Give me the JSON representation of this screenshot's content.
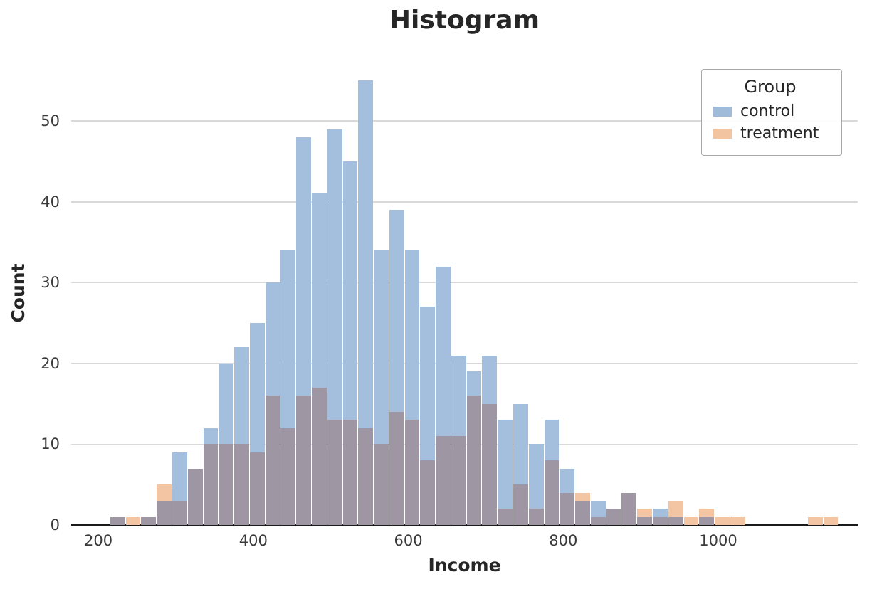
{
  "chart_data": {
    "type": "bar",
    "subtype": "overlaid-histogram",
    "title": "Histogram",
    "xlabel": "Income",
    "ylabel": "Count",
    "xlim": [
      165,
      1180
    ],
    "ylim": [
      0,
      57.5
    ],
    "x_ticks": [
      200,
      400,
      600,
      800,
      1000
    ],
    "y_ticks": [
      0,
      10,
      20,
      30,
      40,
      50
    ],
    "bin_width": 20,
    "grid": "horizontal",
    "colors": {
      "control": "#a4bedd",
      "treatment": "#f3c5a2",
      "overlap": "#9e97a3",
      "axis": "#1a1a1a",
      "gridline": "#d9d9d9"
    },
    "legend": {
      "title": "Group",
      "position": "upper right",
      "entries": [
        {
          "label": "control",
          "color": "#a0bbda"
        },
        {
          "label": "treatment",
          "color": "#f2c4a0"
        }
      ]
    },
    "bins": [
      {
        "x": 215,
        "control": 1,
        "treatment": 1
      },
      {
        "x": 235,
        "control": 0,
        "treatment": 1
      },
      {
        "x": 255,
        "control": 1,
        "treatment": 1
      },
      {
        "x": 275,
        "control": 3,
        "treatment": 5
      },
      {
        "x": 295,
        "control": 9,
        "treatment": 3
      },
      {
        "x": 315,
        "control": 7,
        "treatment": 7
      },
      {
        "x": 335,
        "control": 12,
        "treatment": 10
      },
      {
        "x": 355,
        "control": 20,
        "treatment": 10
      },
      {
        "x": 375,
        "control": 22,
        "treatment": 10
      },
      {
        "x": 395,
        "control": 25,
        "treatment": 9
      },
      {
        "x": 415,
        "control": 30,
        "treatment": 16
      },
      {
        "x": 435,
        "control": 34,
        "treatment": 12
      },
      {
        "x": 455,
        "control": 48,
        "treatment": 16
      },
      {
        "x": 475,
        "control": 41,
        "treatment": 17
      },
      {
        "x": 495,
        "control": 49,
        "treatment": 13
      },
      {
        "x": 515,
        "control": 45,
        "treatment": 13
      },
      {
        "x": 535,
        "control": 55,
        "treatment": 12
      },
      {
        "x": 555,
        "control": 34,
        "treatment": 10
      },
      {
        "x": 575,
        "control": 39,
        "treatment": 14
      },
      {
        "x": 595,
        "control": 34,
        "treatment": 13
      },
      {
        "x": 615,
        "control": 27,
        "treatment": 8
      },
      {
        "x": 635,
        "control": 32,
        "treatment": 11
      },
      {
        "x": 655,
        "control": 21,
        "treatment": 11
      },
      {
        "x": 675,
        "control": 19,
        "treatment": 16
      },
      {
        "x": 695,
        "control": 21,
        "treatment": 15
      },
      {
        "x": 715,
        "control": 13,
        "treatment": 2
      },
      {
        "x": 735,
        "control": 15,
        "treatment": 5
      },
      {
        "x": 755,
        "control": 10,
        "treatment": 2
      },
      {
        "x": 775,
        "control": 13,
        "treatment": 8
      },
      {
        "x": 795,
        "control": 7,
        "treatment": 4
      },
      {
        "x": 815,
        "control": 3,
        "treatment": 4
      },
      {
        "x": 835,
        "control": 3,
        "treatment": 1
      },
      {
        "x": 855,
        "control": 2,
        "treatment": 2
      },
      {
        "x": 875,
        "control": 4,
        "treatment": 4
      },
      {
        "x": 895,
        "control": 1,
        "treatment": 2
      },
      {
        "x": 915,
        "control": 2,
        "treatment": 1
      },
      {
        "x": 935,
        "control": 1,
        "treatment": 3
      },
      {
        "x": 955,
        "control": 0,
        "treatment": 1
      },
      {
        "x": 975,
        "control": 1,
        "treatment": 2
      },
      {
        "x": 995,
        "control": 0,
        "treatment": 1
      },
      {
        "x": 1015,
        "control": 0,
        "treatment": 1
      },
      {
        "x": 1115,
        "control": 0,
        "treatment": 1
      },
      {
        "x": 1135,
        "control": 0,
        "treatment": 1
      }
    ]
  }
}
